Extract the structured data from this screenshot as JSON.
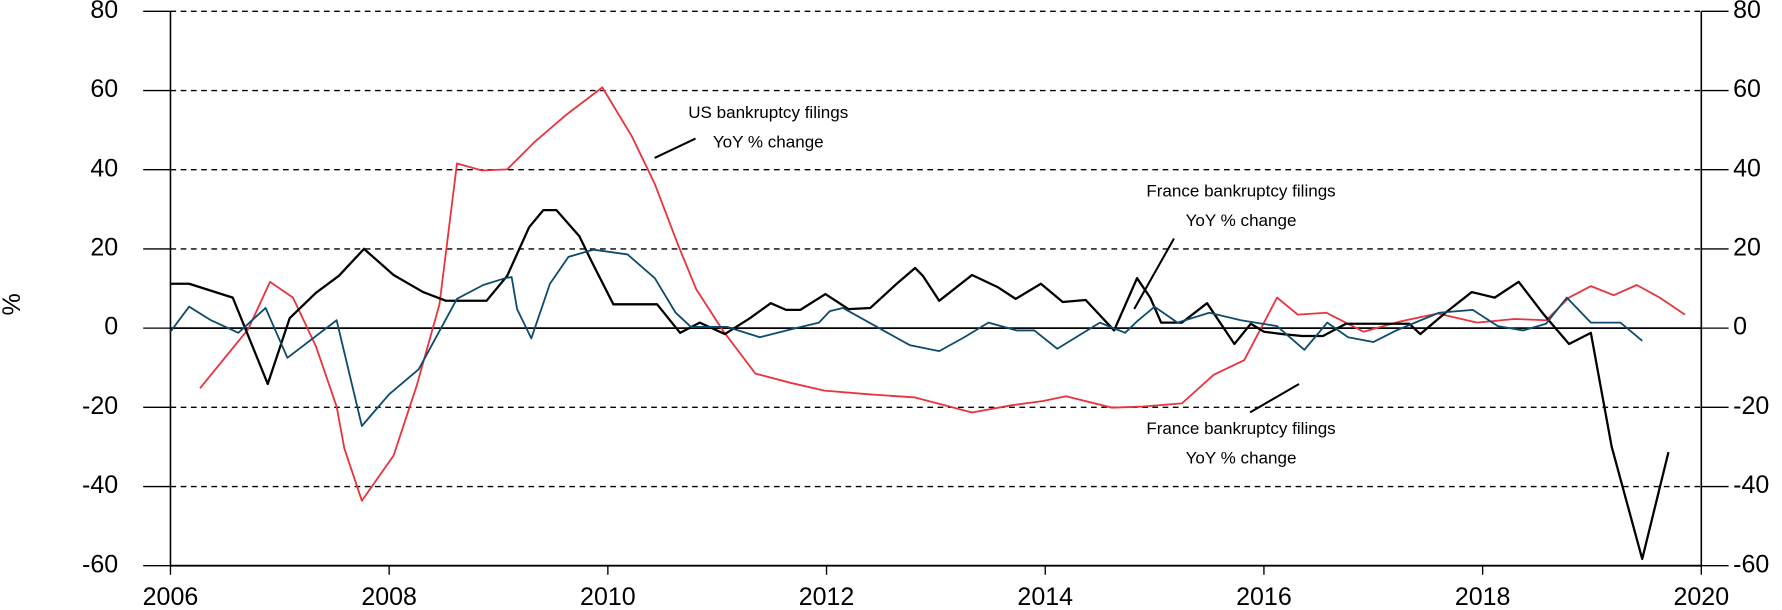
{
  "chart_data": {
    "type": "line",
    "y_label": "%",
    "xlim": [
      2006,
      2020
    ],
    "xticks": [
      2006,
      2008,
      2010,
      2012,
      2014,
      2016,
      2018,
      2020
    ],
    "ylim": [
      -60,
      80
    ],
    "yticks": [
      -60,
      -40,
      -20,
      0,
      20,
      40,
      60,
      80
    ],
    "grid": true,
    "annotations": [
      {
        "lines": [
          "US bankruptcy filings",
          "YoY % change"
        ]
      },
      {
        "lines": [
          "France bankruptcy filings",
          "YoY % change"
        ]
      },
      {
        "lines": [
          "France bankruptcy filings",
          "YoY % change"
        ]
      }
    ],
    "series": [
      {
        "color": "#e8343f",
        "x": [
          2006.27,
          2006.71,
          2006.91,
          2007.12,
          2007.33,
          2007.52,
          2007.59,
          2007.75,
          2008.04,
          2008.25,
          2008.46,
          2008.62,
          2008.85,
          2009.08,
          2009.33,
          2009.62,
          2009.95,
          2010.22,
          2010.43,
          2010.64,
          2010.81,
          2011.06,
          2011.35,
          2011.67,
          2011.98,
          2012.39,
          2012.81,
          2013.33,
          2013.69,
          2013.98,
          2014.19,
          2014.61,
          2014.89,
          2015.25,
          2015.54,
          2015.82,
          2016.12,
          2016.31,
          2016.57,
          2016.91,
          2017.25,
          2017.59,
          2017.95,
          2018.29,
          2018.58,
          2018.79,
          2018.99,
          2019.2,
          2019.41,
          2019.62,
          2019.85
        ],
        "values": [
          -15.2,
          -0.3,
          11.7,
          7.7,
          -4.6,
          -19.8,
          -30.4,
          -43.6,
          -32.2,
          -14.7,
          6.0,
          41.6,
          39.8,
          40.1,
          47.0,
          53.9,
          60.8,
          48.4,
          36.4,
          21.2,
          9.7,
          -0.9,
          -11.5,
          -13.8,
          -15.8,
          -16.7,
          -17.5,
          -21.3,
          -19.5,
          -18.4,
          -17.2,
          -20.1,
          -19.8,
          -19.0,
          -11.8,
          -8.1,
          7.7,
          3.4,
          3.9,
          -0.9,
          1.7,
          3.7,
          1.4,
          2.3,
          2.0,
          7.7,
          10.6,
          8.3,
          10.9,
          7.7,
          3.4
        ]
      },
      {
        "color": "#000000",
        "x": [
          2006.0,
          2006.17,
          2006.57,
          2006.89,
          2007.09,
          2007.33,
          2007.54,
          2007.77,
          2008.04,
          2008.31,
          2008.52,
          2008.7,
          2008.89,
          2009.08,
          2009.28,
          2009.41,
          2009.53,
          2009.74,
          2009.85,
          2010.05,
          2010.26,
          2010.45,
          2010.66,
          2010.84,
          2011.07,
          2011.3,
          2011.49,
          2011.63,
          2011.76,
          2011.99,
          2012.2,
          2012.4,
          2012.65,
          2012.81,
          2012.88,
          2013.03,
          2013.33,
          2013.57,
          2013.73,
          2013.96,
          2014.16,
          2014.37,
          2014.63,
          2014.84,
          2014.96,
          2015.06,
          2015.25,
          2015.48,
          2015.73,
          2015.88,
          2016.0,
          2016.17,
          2016.35,
          2016.54,
          2016.75,
          2017.02,
          2017.33,
          2017.43,
          2017.66,
          2017.9,
          2018.11,
          2018.33,
          2018.56,
          2018.79,
          2018.99,
          2019.18,
          2019.46,
          2019.7
        ],
        "values": [
          11.2,
          11.2,
          7.7,
          -14.1,
          2.5,
          8.9,
          13.2,
          20.0,
          13.4,
          9.1,
          6.9,
          6.9,
          6.9,
          13.2,
          25.5,
          29.8,
          29.8,
          23.2,
          16.9,
          6.0,
          6.0,
          6.0,
          -1.2,
          1.4,
          -1.5,
          2.5,
          6.3,
          4.6,
          4.6,
          8.6,
          4.8,
          5.1,
          11.4,
          15.2,
          13.2,
          6.9,
          13.4,
          10.3,
          7.4,
          11.2,
          6.6,
          7.1,
          -0.6,
          12.6,
          7.7,
          1.4,
          1.4,
          6.3,
          -4.0,
          1.1,
          -0.9,
          -1.5,
          -2.0,
          -2.0,
          1.1,
          1.1,
          1.1,
          -1.5,
          3.9,
          9.1,
          7.7,
          11.7,
          3.4,
          -4.0,
          -1.2,
          -29.9,
          -58.3,
          -31.3
        ]
      },
      {
        "color": "#0d4c6e",
        "x": [
          2006.0,
          2006.17,
          2006.37,
          2006.62,
          2006.87,
          2007.07,
          2007.52,
          2007.75,
          2008.0,
          2008.27,
          2008.62,
          2008.86,
          2009.06,
          2009.12,
          2009.17,
          2009.3,
          2009.47,
          2009.64,
          2009.87,
          2010.18,
          2010.43,
          2010.62,
          2010.76,
          2010.97,
          2011.09,
          2011.39,
          2011.72,
          2011.93,
          2012.03,
          2012.15,
          2012.76,
          2013.03,
          2013.26,
          2013.48,
          2013.74,
          2013.9,
          2014.11,
          2014.5,
          2014.73,
          2014.84,
          2015.0,
          2015.21,
          2015.5,
          2015.79,
          2016.12,
          2016.37,
          2016.58,
          2016.77,
          2017.0,
          2017.21,
          2017.6,
          2017.91,
          2018.14,
          2018.37,
          2018.58,
          2018.77,
          2018.99,
          2019.26,
          2019.46
        ],
        "values": [
          -0.9,
          5.4,
          2.0,
          -1.2,
          5.1,
          -7.5,
          2.0,
          -24.7,
          -16.7,
          -10.4,
          7.4,
          10.9,
          12.6,
          12.9,
          4.8,
          -2.6,
          11.2,
          18.0,
          19.8,
          18.6,
          12.6,
          3.9,
          0.3,
          0.3,
          0.3,
          -2.3,
          0.0,
          1.4,
          4.3,
          5.1,
          -4.3,
          -5.8,
          -2.3,
          1.4,
          -0.6,
          -0.6,
          -5.2,
          1.4,
          -1.2,
          1.7,
          5.4,
          1.4,
          3.9,
          2.0,
          0.5,
          -5.5,
          1.4,
          -2.3,
          -3.5,
          -0.6,
          3.9,
          4.6,
          0.5,
          -0.6,
          1.1,
          7.7,
          1.4,
          1.4,
          -3.2
        ]
      }
    ]
  }
}
